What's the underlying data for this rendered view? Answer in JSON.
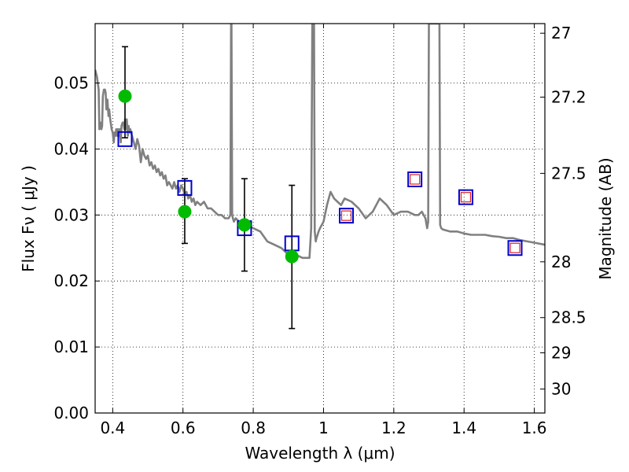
{
  "chart_data": {
    "type": "scatter",
    "xlabel": "Wavelength  λ (μm)",
    "ylabel": "Flux  Fν  ( μJy )",
    "y2label": "Magnitude (AB)",
    "xlim": [
      0.35,
      1.63
    ],
    "ylim": [
      0.0,
      0.059
    ],
    "grid": true,
    "x_ticks": [
      0.4,
      0.6,
      0.8,
      1.0,
      1.2,
      1.4,
      1.6
    ],
    "x_tick_labels": [
      "0.4",
      "0.6",
      "0.8",
      "1",
      "1.2",
      "1.4",
      "1.6"
    ],
    "y_ticks": [
      0.0,
      0.01,
      0.02,
      0.03,
      0.04,
      0.05
    ],
    "y_tick_labels": [
      "0.00",
      "0.01",
      "0.02",
      "0.03",
      "0.04",
      "0.05"
    ],
    "y2_ticks": [
      27,
      27.2,
      27.5,
      28,
      28.5,
      29,
      30
    ],
    "y2_tick_labels": [
      "27",
      "27.2",
      "27.5",
      "28",
      "28.5",
      "29",
      "30"
    ],
    "colors": {
      "sed": "#808080",
      "observed": "#00bb00",
      "model_box": "#0000cc",
      "model_inner": "#dd2222",
      "errorbar": "#000000",
      "grid": "#000000"
    },
    "sed_model": {
      "x": [
        0.35,
        0.355,
        0.36,
        0.362,
        0.365,
        0.368,
        0.37,
        0.372,
        0.375,
        0.378,
        0.38,
        0.382,
        0.385,
        0.388,
        0.39,
        0.393,
        0.397,
        0.4,
        0.403,
        0.405,
        0.408,
        0.41,
        0.413,
        0.415,
        0.418,
        0.42,
        0.423,
        0.425,
        0.428,
        0.43,
        0.433,
        0.435,
        0.438,
        0.44,
        0.443,
        0.445,
        0.448,
        0.45,
        0.455,
        0.46,
        0.465,
        0.47,
        0.475,
        0.48,
        0.485,
        0.49,
        0.495,
        0.5,
        0.505,
        0.51,
        0.515,
        0.52,
        0.525,
        0.53,
        0.535,
        0.54,
        0.545,
        0.55,
        0.555,
        0.56,
        0.565,
        0.57,
        0.575,
        0.58,
        0.585,
        0.59,
        0.595,
        0.6,
        0.605,
        0.61,
        0.615,
        0.62,
        0.625,
        0.63,
        0.635,
        0.64,
        0.65,
        0.66,
        0.67,
        0.68,
        0.69,
        0.7,
        0.71,
        0.72,
        0.73,
        0.735,
        0.737,
        0.738,
        0.74,
        0.742,
        0.745,
        0.75,
        0.76,
        0.77,
        0.78,
        0.8,
        0.82,
        0.84,
        0.86,
        0.88,
        0.9,
        0.92,
        0.94,
        0.96,
        0.965,
        0.968,
        0.97,
        0.973,
        0.975,
        0.978,
        0.98,
        0.983,
        0.986,
        0.99,
        1.0,
        1.01,
        1.02,
        1.03,
        1.04,
        1.05,
        1.06,
        1.08,
        1.1,
        1.12,
        1.14,
        1.16,
        1.17,
        1.18,
        1.2,
        1.22,
        1.24,
        1.26,
        1.27,
        1.28,
        1.29,
        1.295,
        1.298,
        1.3,
        1.32,
        1.33,
        1.332,
        1.335,
        1.34,
        1.36,
        1.38,
        1.4,
        1.42,
        1.44,
        1.46,
        1.48,
        1.5,
        1.52,
        1.54,
        1.56,
        1.58,
        1.6,
        1.63
      ],
      "y": [
        0.052,
        0.051,
        0.049,
        0.043,
        0.044,
        0.043,
        0.0435,
        0.048,
        0.049,
        0.049,
        0.0485,
        0.046,
        0.0475,
        0.045,
        0.046,
        0.0445,
        0.043,
        0.0425,
        0.041,
        0.0425,
        0.042,
        0.043,
        0.042,
        0.043,
        0.042,
        0.043,
        0.041,
        0.0435,
        0.044,
        0.044,
        0.043,
        0.0445,
        0.043,
        0.0445,
        0.042,
        0.0435,
        0.0425,
        0.043,
        0.042,
        0.041,
        0.04,
        0.0415,
        0.0405,
        0.038,
        0.04,
        0.039,
        0.0385,
        0.039,
        0.0375,
        0.038,
        0.037,
        0.0375,
        0.0365,
        0.037,
        0.036,
        0.0365,
        0.0355,
        0.036,
        0.0345,
        0.035,
        0.0345,
        0.034,
        0.035,
        0.034,
        0.0345,
        0.0335,
        0.0345,
        0.034,
        0.033,
        0.0335,
        0.0325,
        0.033,
        0.032,
        0.0325,
        0.0315,
        0.032,
        0.0315,
        0.032,
        0.031,
        0.031,
        0.0305,
        0.03,
        0.03,
        0.0295,
        0.0295,
        0.03,
        0.059,
        0.059,
        0.03,
        0.0295,
        0.029,
        0.0295,
        0.029,
        0.0285,
        0.0285,
        0.028,
        0.0275,
        0.026,
        0.0255,
        0.025,
        0.024,
        0.024,
        0.0235,
        0.0235,
        0.028,
        0.059,
        0.059,
        0.059,
        0.0275,
        0.026,
        0.0265,
        0.027,
        0.0275,
        0.028,
        0.029,
        0.0315,
        0.0335,
        0.0325,
        0.032,
        0.0315,
        0.0325,
        0.032,
        0.031,
        0.0295,
        0.0305,
        0.0325,
        0.032,
        0.0315,
        0.03,
        0.0305,
        0.0305,
        0.03,
        0.03,
        0.0305,
        0.0295,
        0.028,
        0.029,
        0.059,
        0.059,
        0.059,
        0.0285,
        0.028,
        0.0278,
        0.0275,
        0.0275,
        0.0272,
        0.027,
        0.027,
        0.027,
        0.0268,
        0.0267,
        0.0265,
        0.0265,
        0.0262,
        0.026,
        0.0258,
        0.0255
      ]
    },
    "series": [
      {
        "marker": "green-circle",
        "x": [
          0.435,
          0.605,
          0.775,
          0.91
        ],
        "y": [
          0.048,
          0.0305,
          0.0285,
          0.0237
        ],
        "yerr_low": [
          0.0063,
          0.0048,
          0.007,
          0.0109
        ],
        "yerr_high": [
          0.0075,
          0.005,
          0.007,
          0.0108
        ]
      },
      {
        "marker": "blue-square",
        "x": [
          0.435,
          0.605,
          0.775,
          0.91,
          1.065,
          1.26,
          1.405,
          1.545
        ],
        "y": [
          0.0415,
          0.0341,
          0.028,
          0.0257,
          0.0299,
          0.0354,
          0.0327,
          0.025
        ]
      },
      {
        "marker": "red-inner-square",
        "x": [
          1.065,
          1.26,
          1.405,
          1.545
        ],
        "y": [
          0.0299,
          0.0354,
          0.0327,
          0.025
        ]
      }
    ]
  }
}
